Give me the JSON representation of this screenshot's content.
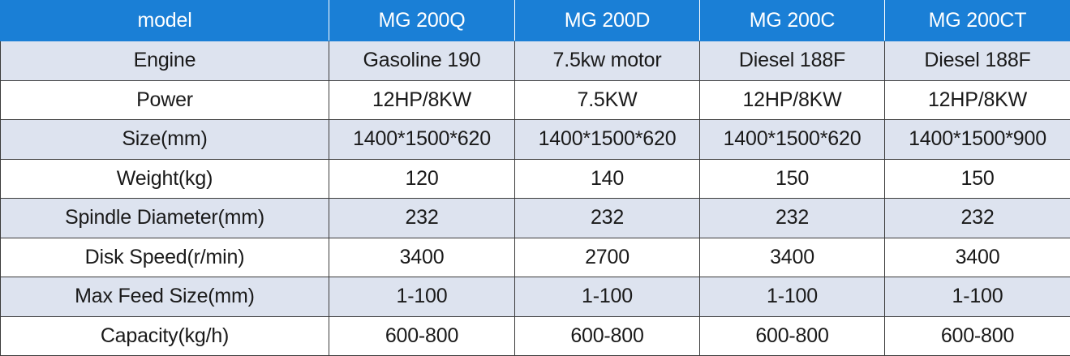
{
  "table": {
    "header": [
      "model",
      "MG 200Q",
      "MG 200D",
      "MG 200C",
      "MG 200CT"
    ],
    "rows": [
      [
        "Engine",
        "Gasoline 190",
        "7.5kw motor",
        "Diesel 188F",
        "Diesel 188F"
      ],
      [
        "Power",
        "12HP/8KW",
        "7.5KW",
        "12HP/8KW",
        "12HP/8KW"
      ],
      [
        "Size(mm)",
        "1400*1500*620",
        "1400*1500*620",
        "1400*1500*620",
        "1400*1500*900"
      ],
      [
        "Weight(kg)",
        "120",
        "140",
        "150",
        "150"
      ],
      [
        "Spindle Diameter(mm)",
        "232",
        "232",
        "232",
        "232"
      ],
      [
        "Disk Speed(r/min)",
        "3400",
        "2700",
        "3400",
        "3400"
      ],
      [
        "Max Feed Size(mm)",
        "1-100",
        "1-100",
        "1-100",
        "1-100"
      ],
      [
        "Capacity(kg/h)",
        "600-800",
        "600-800",
        "600-800",
        "600-800"
      ]
    ]
  },
  "colors": {
    "header_bg": "#1a7fd6",
    "header_text": "#ffffff",
    "alt_row_bg": "#dde3ef",
    "plain_row_bg": "#ffffff",
    "border": "#3b3b3b"
  }
}
